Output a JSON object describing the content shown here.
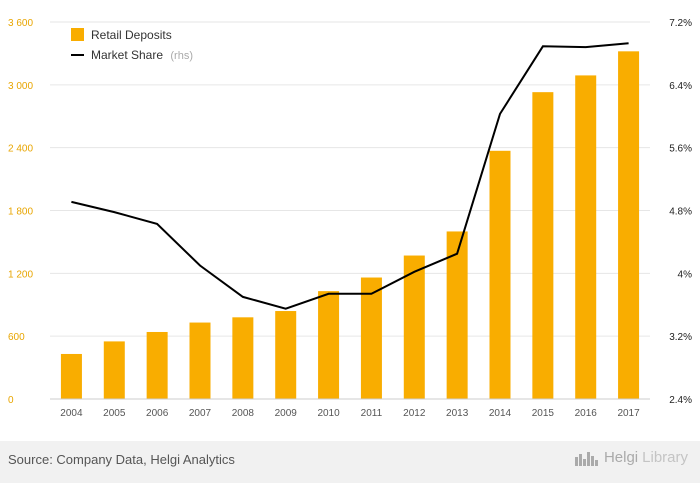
{
  "chart_data": {
    "type": "bar",
    "categories": [
      "2004",
      "2005",
      "2006",
      "2007",
      "2008",
      "2009",
      "2010",
      "2011",
      "2012",
      "2013",
      "2014",
      "2015",
      "2016",
      "2017"
    ],
    "series": [
      {
        "name": "Retail Deposits",
        "type": "bar",
        "axis": "left",
        "color": "#f9ad00",
        "values": [
          430,
          550,
          640,
          730,
          780,
          840,
          1030,
          1160,
          1370,
          1600,
          2370,
          2930,
          3090,
          3320
        ]
      },
      {
        "name": "Market Share",
        "name_suffix": "(rhs)",
        "type": "line",
        "axis": "right",
        "color": "#000000",
        "values": [
          4.91,
          4.78,
          4.63,
          4.1,
          3.7,
          3.55,
          3.74,
          3.74,
          4.02,
          4.25,
          6.03,
          6.89,
          6.88,
          6.93
        ]
      }
    ],
    "left_axis": {
      "ticks": [
        "0",
        "600",
        "1 200",
        "1 800",
        "2 400",
        "3 000",
        "3 600"
      ],
      "tick_values": [
        0,
        600,
        1200,
        1800,
        2400,
        3000,
        3600
      ],
      "ylim": [
        0,
        3600
      ],
      "color": "#e8a500"
    },
    "right_axis": {
      "ticks": [
        "2.4%",
        "3.2%",
        "4%",
        "4.8%",
        "5.6%",
        "6.4%",
        "7.2%"
      ],
      "tick_values": [
        2.4,
        3.2,
        4.0,
        4.8,
        5.6,
        6.4,
        7.2
      ],
      "ylim": [
        2.4,
        7.2
      ]
    },
    "grid": true,
    "legend_position": "top-left",
    "title": "",
    "xlabel": "",
    "ylabel": ""
  },
  "footer": {
    "source": "Source: Company Data, Helgi Analytics",
    "brand_primary": "Helgi",
    "brand_secondary": "Library"
  }
}
